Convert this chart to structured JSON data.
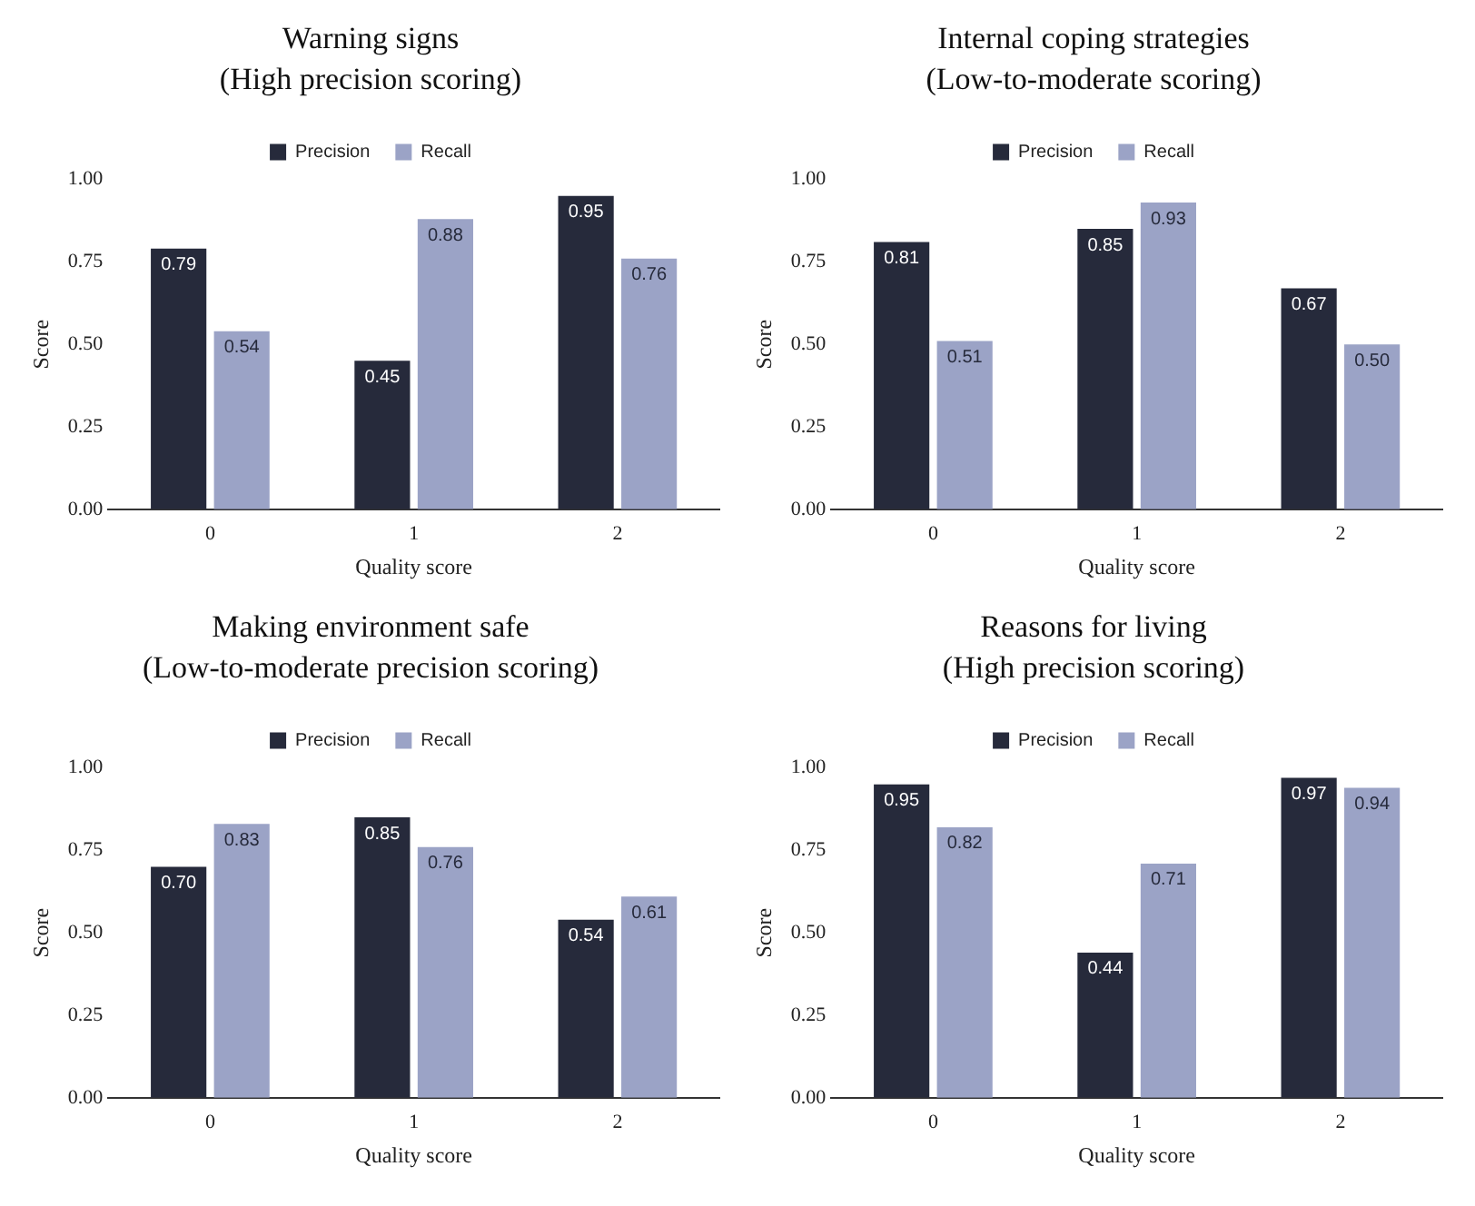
{
  "chart_data": [
    {
      "type": "bar",
      "title": "Warning signs",
      "subtitle": "(High precision scoring)",
      "xlabel": "Quality score",
      "ylabel": "Score",
      "categories": [
        "0",
        "1",
        "2"
      ],
      "series": [
        {
          "name": "Precision",
          "color": "#262a3b",
          "values": [
            0.79,
            0.45,
            0.95
          ],
          "value_labels": [
            "0.79",
            "0.45",
            "0.95"
          ]
        },
        {
          "name": "Recall",
          "color": "#9ba3c6",
          "values": [
            0.54,
            0.88,
            0.76
          ],
          "value_labels": [
            "0.54",
            "0.88",
            "0.76"
          ]
        }
      ],
      "ylim": [
        0,
        1
      ],
      "yticks": [
        {
          "value": 0,
          "label": "0.00"
        },
        {
          "value": 0.25,
          "label": "0.25"
        },
        {
          "value": 0.5,
          "label": "0.50"
        },
        {
          "value": 0.75,
          "label": "0.75"
        },
        {
          "value": 1,
          "label": "1.00"
        }
      ],
      "legend": "top",
      "grid": false
    },
    {
      "type": "bar",
      "title": "Internal coping strategies",
      "subtitle": "(Low-to-moderate scoring)",
      "xlabel": "Quality score",
      "ylabel": "Score",
      "categories": [
        "0",
        "1",
        "2"
      ],
      "series": [
        {
          "name": "Precision",
          "color": "#262a3b",
          "values": [
            0.81,
            0.85,
            0.67
          ],
          "value_labels": [
            "0.81",
            "0.85",
            "0.67"
          ]
        },
        {
          "name": "Recall",
          "color": "#9ba3c6",
          "values": [
            0.51,
            0.93,
            0.5
          ],
          "value_labels": [
            "0.51",
            "0.93",
            "0.50"
          ]
        }
      ],
      "ylim": [
        0,
        1
      ],
      "yticks": [
        {
          "value": 0,
          "label": "0.00"
        },
        {
          "value": 0.25,
          "label": "0.25"
        },
        {
          "value": 0.5,
          "label": "0.50"
        },
        {
          "value": 0.75,
          "label": "0.75"
        },
        {
          "value": 1,
          "label": "1.00"
        }
      ],
      "legend": "top",
      "grid": false
    },
    {
      "type": "bar",
      "title": "Making environment safe",
      "subtitle": "(Low-to-moderate precision scoring)",
      "xlabel": "Quality score",
      "ylabel": "Score",
      "categories": [
        "0",
        "1",
        "2"
      ],
      "series": [
        {
          "name": "Precision",
          "color": "#262a3b",
          "values": [
            0.7,
            0.85,
            0.54
          ],
          "value_labels": [
            "0.70",
            "0.85",
            "0.54"
          ]
        },
        {
          "name": "Recall",
          "color": "#9ba3c6",
          "values": [
            0.83,
            0.76,
            0.61
          ],
          "value_labels": [
            "0.83",
            "0.76",
            "0.61"
          ]
        }
      ],
      "ylim": [
        0,
        1
      ],
      "yticks": [
        {
          "value": 0,
          "label": "0.00"
        },
        {
          "value": 0.25,
          "label": "0.25"
        },
        {
          "value": 0.5,
          "label": "0.50"
        },
        {
          "value": 0.75,
          "label": "0.75"
        },
        {
          "value": 1,
          "label": "1.00"
        }
      ],
      "legend": "top",
      "grid": false
    },
    {
      "type": "bar",
      "title": "Reasons for living",
      "subtitle": "(High precision scoring)",
      "xlabel": "Quality score",
      "ylabel": "Score",
      "categories": [
        "0",
        "1",
        "2"
      ],
      "series": [
        {
          "name": "Precision",
          "color": "#262a3b",
          "values": [
            0.95,
            0.44,
            0.97
          ],
          "value_labels": [
            "0.95",
            "0.44",
            "0.97"
          ]
        },
        {
          "name": "Recall",
          "color": "#9ba3c6",
          "values": [
            0.82,
            0.71,
            0.94
          ],
          "value_labels": [
            "0.82",
            "0.71",
            "0.94"
          ]
        }
      ],
      "ylim": [
        0,
        1
      ],
      "yticks": [
        {
          "value": 0,
          "label": "0.00"
        },
        {
          "value": 0.25,
          "label": "0.25"
        },
        {
          "value": 0.5,
          "label": "0.50"
        },
        {
          "value": 0.75,
          "label": "0.75"
        },
        {
          "value": 1,
          "label": "1.00"
        }
      ],
      "legend": "top",
      "grid": false
    }
  ]
}
